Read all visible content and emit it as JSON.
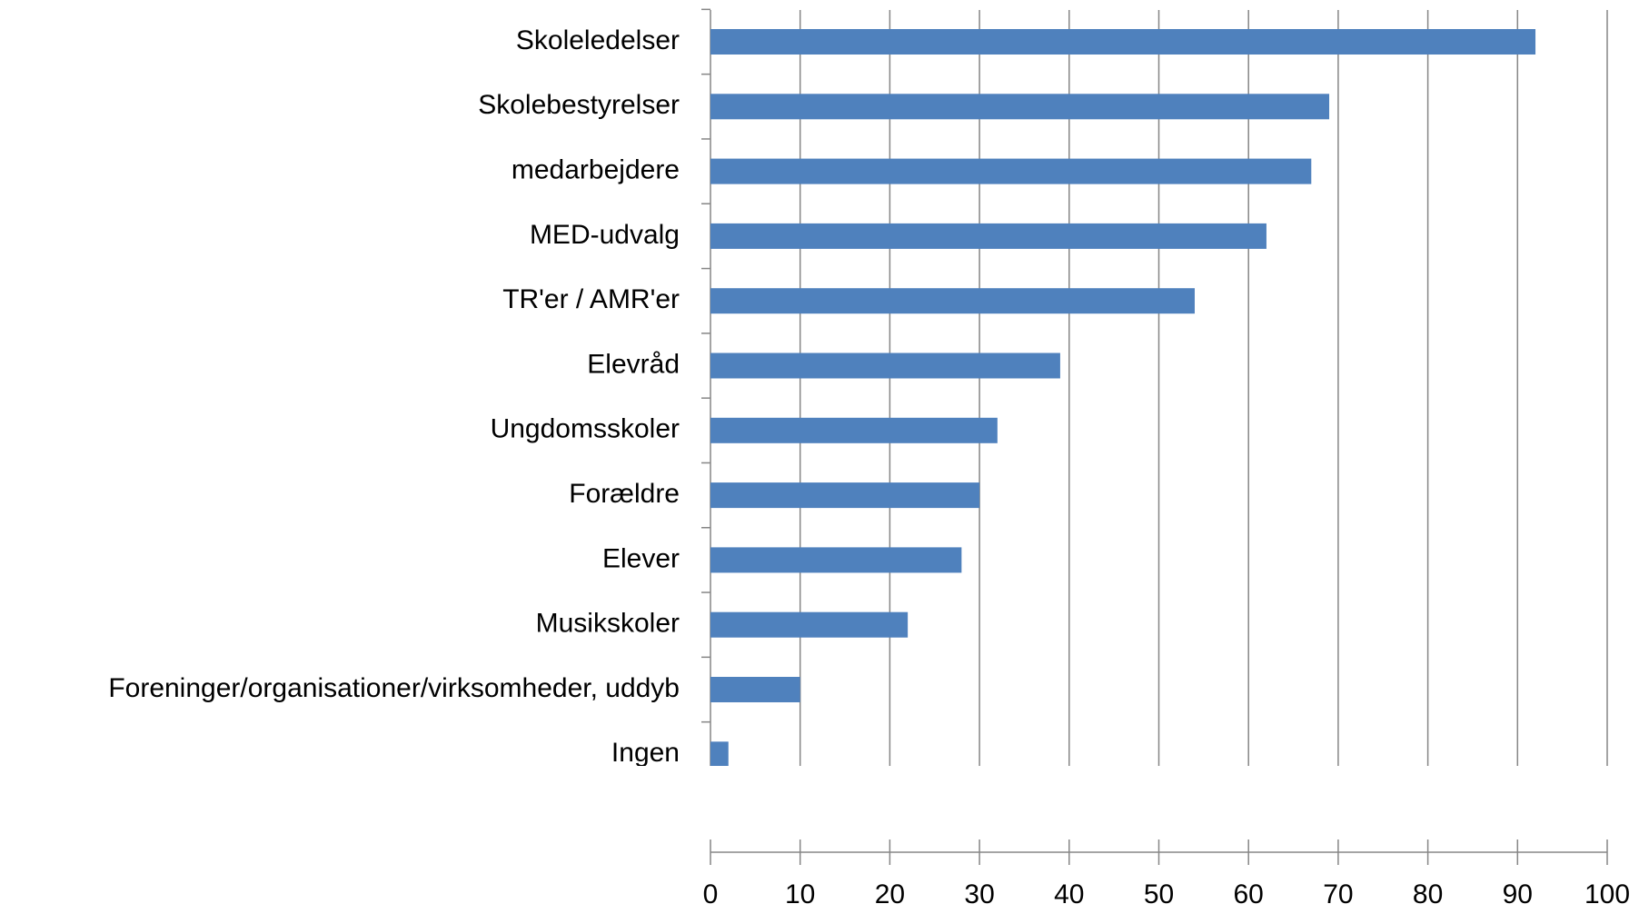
{
  "chart_data": {
    "type": "barh",
    "categories": [
      "Skoleledelser",
      "Skolebestyrelser",
      "medarbejdere",
      "MED-udvalg",
      "TR'er / AMR'er",
      "Elevråd",
      "Ungdomsskoler",
      "Forældre",
      "Elever",
      "Musikskoler",
      "Foreninger/organisationer/virksomheder, uddyb",
      "Ingen"
    ],
    "values": [
      92,
      69,
      67,
      62,
      54,
      39,
      32,
      30,
      28,
      22,
      10,
      2
    ],
    "color": "#4f81bd",
    "xlim": [
      0,
      100
    ],
    "xticks": [
      0,
      10,
      20,
      30,
      40,
      50,
      60,
      70,
      80,
      90,
      100
    ],
    "grid": true
  }
}
